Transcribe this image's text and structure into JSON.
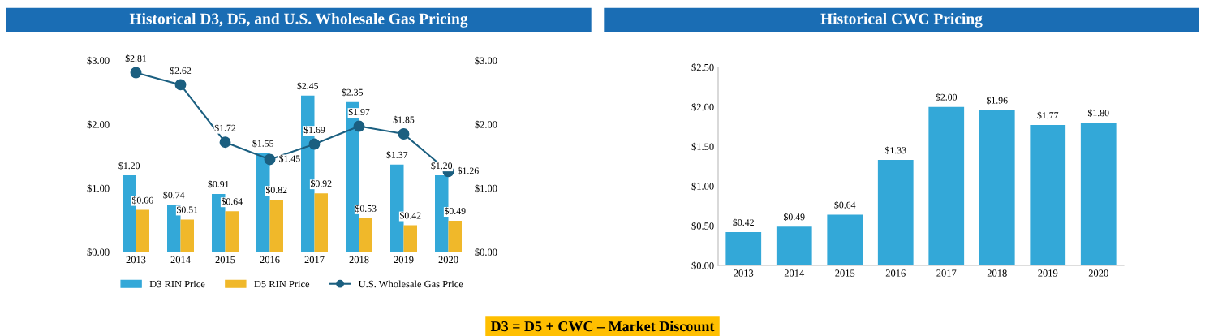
{
  "chart_data": [
    {
      "type": "bar",
      "title": "Historical D3, D5, and U.S. Wholesale Gas Pricing",
      "categories": [
        "2013",
        "2014",
        "2015",
        "2016",
        "2017",
        "2018",
        "2019",
        "2020"
      ],
      "series": [
        {
          "name": "D3 RIN Price",
          "color": "#33a8d8",
          "values": [
            1.2,
            0.74,
            0.91,
            1.55,
            2.45,
            2.35,
            1.37,
            1.2
          ],
          "value_labels": [
            "$1.20",
            "$0.74",
            "$0.91",
            "$1.55",
            "$2.45",
            "$2.35",
            "$1.37",
            "$1.20"
          ]
        },
        {
          "name": "D5 RIN Price",
          "color": "#f0b82a",
          "values": [
            0.66,
            0.51,
            0.64,
            0.82,
            0.92,
            0.53,
            0.42,
            0.49
          ],
          "value_labels": [
            "$0.66",
            "$0.51",
            "$0.64",
            "$0.82",
            "$0.92",
            "$0.53",
            "$0.42",
            "$0.49"
          ]
        },
        {
          "name": "U.S. Wholesale Gas Price",
          "type": "line",
          "axis": "y2",
          "color": "#1b5f80",
          "values": [
            2.81,
            2.62,
            1.72,
            1.45,
            1.69,
            1.97,
            1.85,
            1.26
          ],
          "value_labels": [
            "$2.81",
            "$2.62",
            "$1.72",
            "$1.45",
            "$1.69",
            "$1.97",
            "$1.85",
            "$1.26"
          ]
        }
      ],
      "ylim": [
        0,
        3
      ],
      "yticks": [
        {
          "value": 0,
          "label": "$0.00"
        },
        {
          "value": 1,
          "label": "$1.00"
        },
        {
          "value": 2,
          "label": "$2.00"
        },
        {
          "value": 3,
          "label": "$3.00"
        }
      ],
      "y2lim": [
        0,
        3
      ],
      "y2ticks": [
        {
          "value": 0,
          "label": "$0.00"
        },
        {
          "value": 1,
          "label": "$1.00"
        },
        {
          "value": 2,
          "label": "$2.00"
        },
        {
          "value": 3,
          "label": "$3.00"
        }
      ],
      "marker": "circle",
      "legend": "bottom",
      "grid": false,
      "annotations": [
        "D3 = D5 + CWC – Market Discount"
      ]
    },
    {
      "type": "bar",
      "title": "Historical CWC Pricing",
      "categories": [
        "2013",
        "2014",
        "2015",
        "2016",
        "2017",
        "2018",
        "2019",
        "2020"
      ],
      "series": [
        {
          "color": "#33a8d8",
          "values": [
            0.42,
            0.49,
            0.64,
            1.33,
            2.0,
            1.96,
            1.77,
            1.8
          ],
          "value_labels": [
            "$0.42",
            "$0.49",
            "$0.64",
            "$1.33",
            "$2.00",
            "$1.96",
            "$1.77",
            "$1.80"
          ]
        }
      ],
      "ylim": [
        0,
        2.5
      ],
      "yticks": [
        {
          "value": 0,
          "label": "$0.00"
        },
        {
          "value": 0.5,
          "label": "$0.50"
        },
        {
          "value": 1,
          "label": "$1.00"
        },
        {
          "value": 1.5,
          "label": "$1.50"
        },
        {
          "value": 2,
          "label": "$2.00"
        },
        {
          "value": 2.5,
          "label": "$2.50"
        }
      ],
      "grid": false
    }
  ]
}
